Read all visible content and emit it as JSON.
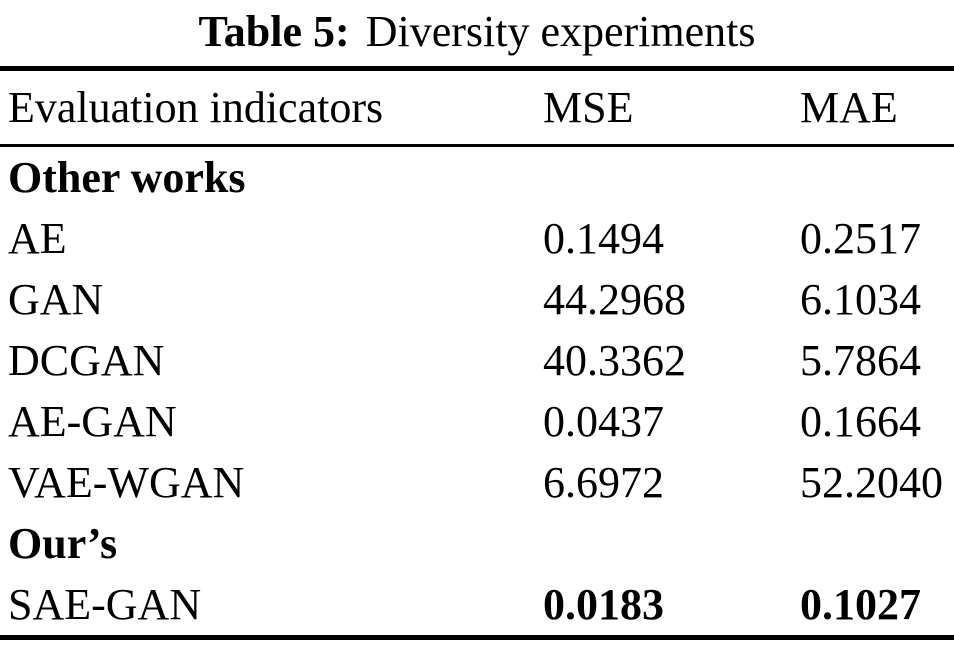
{
  "caption": {
    "label": "Table 5:",
    "text": "Diversity experiments"
  },
  "table": {
    "headers": [
      "Evaluation indicators",
      "MSE",
      "MAE"
    ],
    "rows": [
      {
        "label": "Other works",
        "mse": "",
        "mae": "",
        "label_bold": true,
        "values_bold": false,
        "section": true
      },
      {
        "label": "AE",
        "mse": "0.1494",
        "mae": "0.2517",
        "label_bold": false,
        "values_bold": false,
        "section": false
      },
      {
        "label": "GAN",
        "mse": "44.2968",
        "mae": "6.1034",
        "label_bold": false,
        "values_bold": false,
        "section": false
      },
      {
        "label": "DCGAN",
        "mse": "40.3362",
        "mae": "5.7864",
        "label_bold": false,
        "values_bold": false,
        "section": false
      },
      {
        "label": "AE-GAN",
        "mse": "0.0437",
        "mae": "0.1664",
        "label_bold": false,
        "values_bold": false,
        "section": false
      },
      {
        "label": "VAE-WGAN",
        "mse": "6.6972",
        "mae": "52.2040",
        "label_bold": false,
        "values_bold": false,
        "section": false
      },
      {
        "label": "Our’s",
        "mse": "",
        "mae": "",
        "label_bold": true,
        "values_bold": false,
        "section": true
      },
      {
        "label": "SAE-GAN",
        "mse": "0.0183",
        "mae": "0.1027",
        "label_bold": false,
        "values_bold": true,
        "section": false
      }
    ]
  },
  "chart_data": {
    "type": "table",
    "title": "Table 5: Diversity experiments",
    "columns": [
      "Evaluation indicators",
      "MSE",
      "MAE"
    ],
    "sections": [
      {
        "name": "Other works",
        "rows": [
          {
            "method": "AE",
            "MSE": 0.1494,
            "MAE": 0.2517
          },
          {
            "method": "GAN",
            "MSE": 44.2968,
            "MAE": 6.1034
          },
          {
            "method": "DCGAN",
            "MSE": 40.3362,
            "MAE": 5.7864
          },
          {
            "method": "AE-GAN",
            "MSE": 0.0437,
            "MAE": 0.1664
          },
          {
            "method": "VAE-WGAN",
            "MSE": 6.6972,
            "MAE": 52.204
          }
        ]
      },
      {
        "name": "Our’s",
        "rows": [
          {
            "method": "SAE-GAN",
            "MSE": 0.0183,
            "MAE": 0.1027,
            "bold": true
          }
        ]
      }
    ]
  },
  "colors": {
    "text": "#000000",
    "background": "#ffffff",
    "rule": "#000000"
  }
}
